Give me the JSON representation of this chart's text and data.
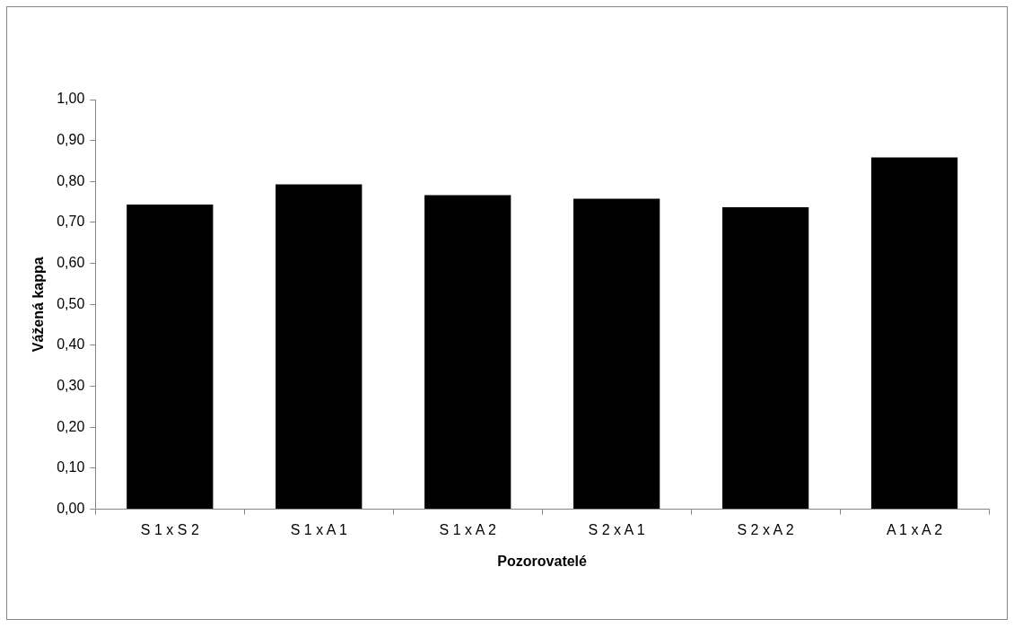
{
  "chart_data": {
    "type": "bar",
    "xlabel": "Pozorovatelé",
    "ylabel": "Vážená kappa",
    "categories": [
      "S 1 x S 2",
      "S 1 x A 1",
      "S 1 x A 2",
      "S 2 x A 1",
      "S 2 x A 2",
      "A 1 x A 2"
    ],
    "values": [
      0.744,
      0.793,
      0.767,
      0.758,
      0.737,
      0.859
    ],
    "color": "#000000",
    "ylim": [
      0,
      1
    ],
    "yticks": [
      {
        "value": 0,
        "label": "0,00"
      },
      {
        "value": 0.1,
        "label": "0,10"
      },
      {
        "value": 0.2,
        "label": "0,20"
      },
      {
        "value": 0.3,
        "label": "0,30"
      },
      {
        "value": 0.4,
        "label": "0,40"
      },
      {
        "value": 0.5,
        "label": "0,50"
      },
      {
        "value": 0.6,
        "label": "0,60"
      },
      {
        "value": 0.7,
        "label": "0,70"
      },
      {
        "value": 0.8,
        "label": "0,80"
      },
      {
        "value": 0.9,
        "label": "0,90"
      },
      {
        "value": 1,
        "label": "1,00"
      }
    ],
    "grid": false,
    "legend": false
  }
}
